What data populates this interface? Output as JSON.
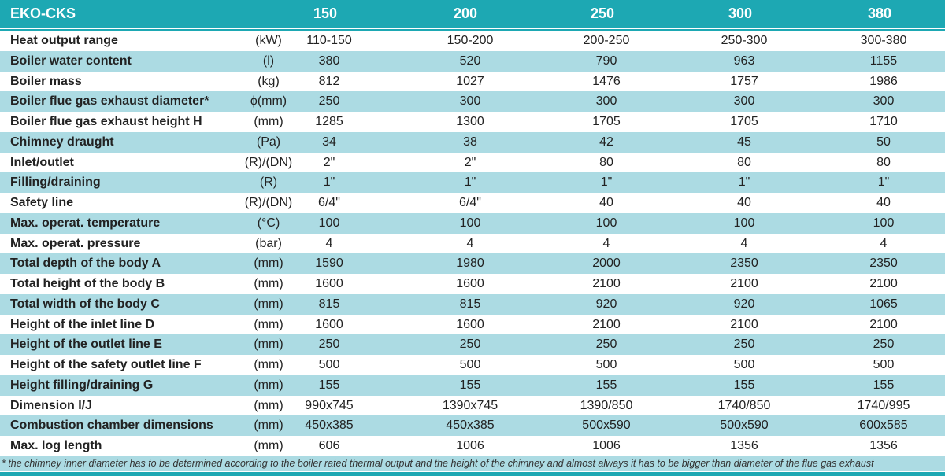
{
  "header": {
    "title": "EKO-CKS",
    "models": [
      "150",
      "200",
      "250",
      "300",
      "380"
    ]
  },
  "rows": [
    {
      "label": "Heat output range",
      "unit": "(kW)",
      "values": [
        "110-150",
        "150-200",
        "200-250",
        "250-300",
        "300-380"
      ]
    },
    {
      "label": "Boiler water content",
      "unit": "(l)",
      "values": [
        "380",
        "520",
        "790",
        "963",
        "1155"
      ]
    },
    {
      "label": "Boiler mass",
      "unit": "(kg)",
      "values": [
        "812",
        "1027",
        "1476",
        "1757",
        "1986"
      ]
    },
    {
      "label": "Boiler flue gas exhaust diameter*",
      "unit": "ϕ(mm)",
      "values": [
        "250",
        "300",
        "300",
        "300",
        "300"
      ]
    },
    {
      "label": "Boiler flue gas exhaust height H",
      "unit": "(mm)",
      "values": [
        "1285",
        "1300",
        "1705",
        "1705",
        "1710"
      ]
    },
    {
      "label": "Chimney draught",
      "unit": "(Pa)",
      "values": [
        "34",
        "38",
        "42",
        "45",
        "50"
      ]
    },
    {
      "label": "Inlet/outlet",
      "unit": "(R)/(DN)",
      "values": [
        "2\"",
        "2\"",
        "80",
        "80",
        "80"
      ]
    },
    {
      "label": "Filling/draining",
      "unit": "(R)",
      "values": [
        "1\"",
        "1\"",
        "1\"",
        "1\"",
        "1\""
      ]
    },
    {
      "label": "Safety line",
      "unit": "(R)/(DN)",
      "values": [
        "6/4\"",
        "6/4\"",
        "40",
        "40",
        "40"
      ]
    },
    {
      "label": "Max. operat. temperature",
      "unit": "(°C)",
      "values": [
        "100",
        "100",
        "100",
        "100",
        "100"
      ]
    },
    {
      "label": "Max. operat. pressure",
      "unit": "(bar)",
      "values": [
        "4",
        "4",
        "4",
        "4",
        "4"
      ]
    },
    {
      "label": "Total depth of the body A",
      "unit": "(mm)",
      "values": [
        "1590",
        "1980",
        "2000",
        "2350",
        "2350"
      ]
    },
    {
      "label": "Total height of the body B",
      "unit": "(mm)",
      "values": [
        "1600",
        "1600",
        "2100",
        "2100",
        "2100"
      ]
    },
    {
      "label": "Total width of the body C",
      "unit": "(mm)",
      "values": [
        "815",
        "815",
        "920",
        "920",
        "1065"
      ]
    },
    {
      "label": "Height of the inlet line D",
      "unit": "(mm)",
      "values": [
        "1600",
        "1600",
        "2100",
        "2100",
        "2100"
      ]
    },
    {
      "label": "Height of the outlet line E",
      "unit": "(mm)",
      "values": [
        "250",
        "250",
        "250",
        "250",
        "250"
      ]
    },
    {
      "label": "Height of the safety outlet line F",
      "unit": "(mm)",
      "values": [
        "500",
        "500",
        "500",
        "500",
        "500"
      ]
    },
    {
      "label": "Height filling/draining G",
      "unit": "(mm)",
      "values": [
        "155",
        "155",
        "155",
        "155",
        "155"
      ]
    },
    {
      "label": "Dimension  I/J",
      "unit": "(mm)",
      "values": [
        "990x745",
        "1390x745",
        "1390/850",
        "1740/850",
        "1740/995"
      ]
    },
    {
      "label": "Combustion chamber dimensions",
      "unit": "(mm)",
      "values": [
        "450x385",
        "450x385",
        "500x590",
        "500x590",
        "600x585"
      ]
    },
    {
      "label": "Max. log length",
      "unit": "(mm)",
      "values": [
        "606",
        "1006",
        "1006",
        "1356",
        "1356"
      ]
    }
  ],
  "footnote": "* the chimney inner diameter has to be determined according to the boiler rated thermal output and the height of the chimney and almost always it has to be bigger than diameter of the flue gas exhaust",
  "colors": {
    "header": "#1da8b3",
    "alt_row": "#acdbe3"
  }
}
